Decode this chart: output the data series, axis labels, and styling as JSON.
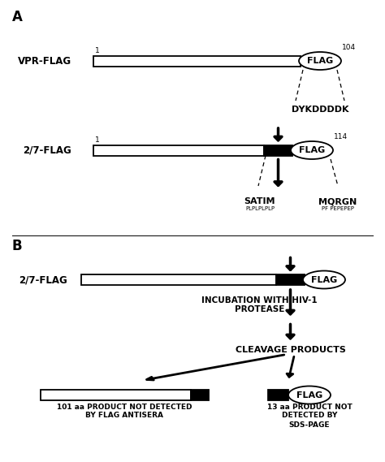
{
  "panel_A_label": "A",
  "panel_B_label": "B",
  "vpr_flag_label": "VPR-FLAG",
  "vpr_num1": "1",
  "vpr_num2": "104",
  "construct_27_label": "2/7-FLAG",
  "construct_27_num1": "1",
  "construct_27_num2": "114",
  "flag_text": "FLAG",
  "dykddddk_text": "DYKDDDDK",
  "satim_text": "SATIM",
  "satim_sub": "PLPLPLPLP",
  "mqrgn_text": "MQRGN",
  "mqrgn_sub": "PF PEPEPEP",
  "incubation_text1": "INCUBATION WITH HIV-1",
  "incubation_text2": "PROTEASE",
  "cleavage_text": "CLEAVAGE PRODUCTS",
  "product1_text1": "101 aa PRODUCT NOT DETECTED",
  "product1_text2": "BY FLAG ANTISERA",
  "product2_text1": "13 aa PRODUCT NOT",
  "product2_text2": "DETECTED BY",
  "product2_text3": "SDS-PAGE",
  "fig_width": 4.74,
  "fig_height": 5.69,
  "dpi": 100
}
